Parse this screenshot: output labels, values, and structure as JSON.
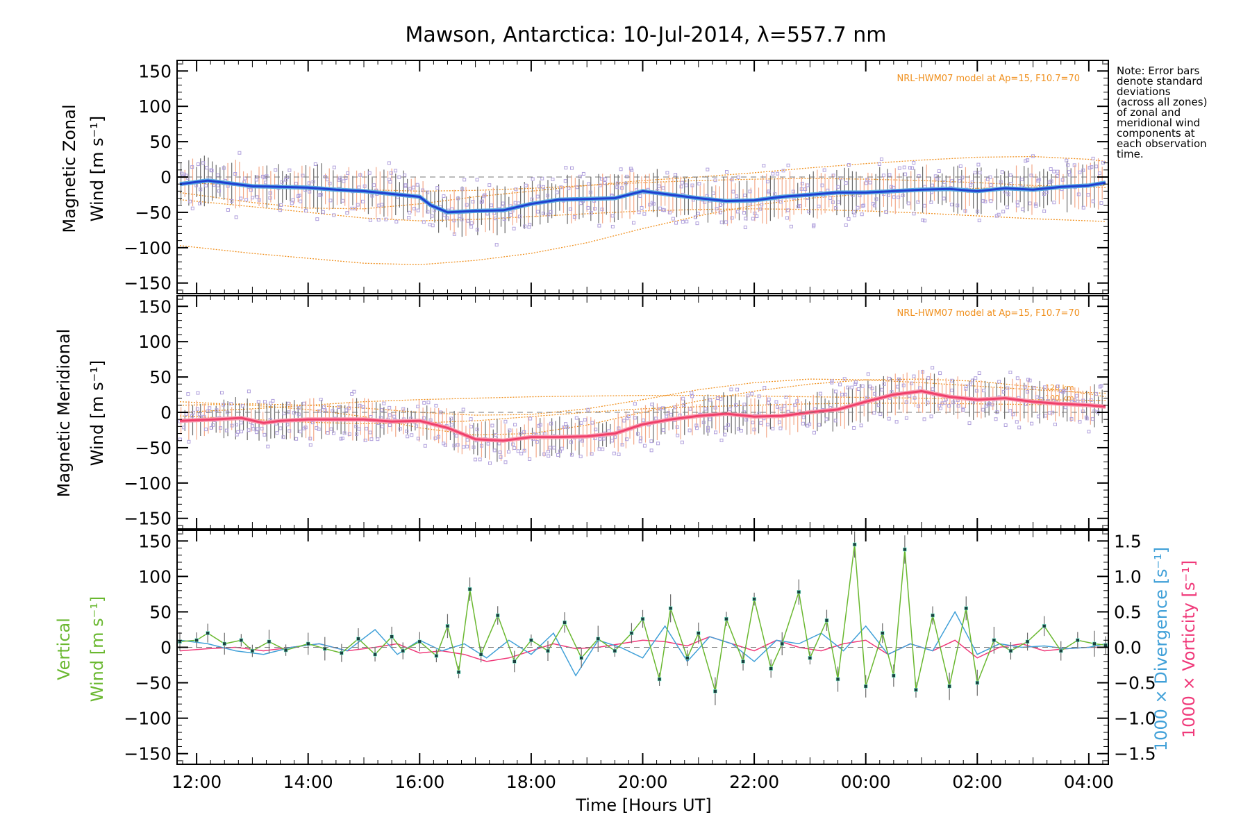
{
  "figure": {
    "title": "Mawson, Antarctica: 10-Jul-2014, λ=557.7 nm",
    "note_lines": [
      "Note: Error bars",
      "denote standard",
      "deviations",
      "(across all zones)",
      "of zonal and",
      "meridional wind",
      "components at",
      "each observation",
      "time."
    ],
    "xlabel": "Time [Hours UT]",
    "model_note": "NRL-HWM07 model at Ap=15, F10.7=70",
    "km_labels": [
      "120 km",
      "100 km"
    ],
    "colors": {
      "zonal": "#1f3fd0",
      "zonal_light": "#5aa8e0",
      "meridional": "#f0406a",
      "vertical": "#6ab830",
      "divergence": "#40a0d8",
      "vorticity": "#f03a7a",
      "model": "#f0901e",
      "scatter": "#b0a0dc",
      "errorbar": "#6a6a6a"
    }
  },
  "chart_data": [
    {
      "type": "line",
      "panel": "zonal",
      "ylabel_line1": "Magnetic Zonal",
      "ylabel_line2": "Wind [m s⁻¹]",
      "x_tick_labels": [
        "12:00",
        "14:00",
        "16:00",
        "18:00",
        "20:00",
        "22:00",
        "00:00",
        "02:00",
        "04:00"
      ],
      "x_ticks_hours": [
        12,
        14,
        16,
        18,
        20,
        22,
        24,
        26,
        28
      ],
      "xlim_hours": [
        11.65,
        28.35
      ],
      "ylim": [
        -165,
        165
      ],
      "y_ticks": [
        150,
        100,
        50,
        0,
        -50,
        -100,
        -150
      ],
      "series": [
        {
          "role": "mean",
          "x": [
            11.7,
            12.2,
            13,
            13.5,
            14,
            14.5,
            15,
            15.5,
            16,
            16.2,
            16.5,
            17,
            17.5,
            18,
            18.5,
            19,
            19.5,
            20,
            20.5,
            21,
            21.5,
            22,
            22.5,
            23,
            23.5,
            24,
            24.5,
            25,
            25.5,
            26,
            26.5,
            27,
            27.5,
            28,
            28.3
          ],
          "y": [
            -10,
            -5,
            -13,
            -14,
            -15,
            -18,
            -20,
            -24,
            -28,
            -40,
            -50,
            -48,
            -47,
            -38,
            -32,
            -31,
            -30,
            -20,
            -25,
            -30,
            -34,
            -33,
            -28,
            -25,
            -22,
            -22,
            -20,
            -18,
            -17,
            -20,
            -16,
            -18,
            -14,
            -12,
            -8
          ]
        }
      ],
      "error_sd": 26,
      "model": [
        {
          "x": [
            11.7,
            13,
            14,
            15,
            16,
            17,
            18,
            19,
            20,
            21,
            22,
            23,
            24,
            25,
            26,
            27,
            28,
            28.3
          ],
          "y": [
            -97,
            -108,
            -115,
            -122,
            -124,
            -118,
            -108,
            -93,
            -73,
            -55,
            -40,
            -30,
            -24,
            -20,
            -16,
            -14,
            -13,
            -12
          ]
        },
        {
          "x": [
            11.7,
            13,
            14,
            15,
            16,
            17,
            18,
            19,
            20,
            21,
            22,
            23,
            24,
            25,
            26,
            27,
            28,
            28.3
          ],
          "y": [
            -32,
            -42,
            -50,
            -58,
            -62,
            -60,
            -56,
            -52,
            -48,
            -46,
            -45,
            -46,
            -48,
            -51,
            -55,
            -59,
            -62,
            -63
          ]
        },
        {
          "x": [
            11.7,
            13,
            14,
            15,
            16,
            17,
            18,
            19,
            20,
            21,
            22,
            23,
            24,
            25,
            26,
            27,
            28,
            28.3
          ],
          "y": [
            -22,
            -36,
            -44,
            -45,
            -38,
            -28,
            -20,
            -12,
            -5,
            0,
            6,
            13,
            19,
            24,
            28,
            29,
            25,
            22
          ]
        },
        {
          "x": [
            11.7,
            13,
            14,
            15,
            16,
            17,
            18,
            19,
            20,
            21,
            22,
            23,
            24,
            25,
            26,
            27,
            28,
            28.3
          ],
          "y": [
            -8,
            -12,
            -16,
            -18,
            -20,
            -19,
            -16,
            -12,
            -8,
            -5,
            -3,
            -2,
            -3,
            -5,
            -8,
            -12,
            -14,
            -15
          ]
        }
      ]
    },
    {
      "type": "line",
      "panel": "meridional",
      "ylabel_line1": "Magnetic Meridional",
      "ylabel_line2": "Wind [m s⁻¹]",
      "x_tick_labels": [
        "12:00",
        "14:00",
        "16:00",
        "18:00",
        "20:00",
        "22:00",
        "00:00",
        "02:00",
        "04:00"
      ],
      "ylim": [
        -165,
        165
      ],
      "y_ticks": [
        150,
        100,
        50,
        0,
        -50,
        -100,
        -150
      ],
      "series": [
        {
          "role": "mean",
          "x": [
            11.7,
            12.3,
            12.8,
            13.2,
            13.5,
            14,
            14.5,
            15,
            15.5,
            16,
            16.5,
            17,
            17.5,
            18,
            18.5,
            19,
            19.5,
            20,
            20.5,
            21,
            21.5,
            22,
            22.5,
            23,
            23.5,
            24,
            24.5,
            25,
            25.5,
            26,
            26.5,
            27,
            27.5,
            28,
            28.3
          ],
          "y": [
            -12,
            -10,
            -8,
            -15,
            -12,
            -10,
            -10,
            -10,
            -13,
            -12,
            -22,
            -38,
            -40,
            -35,
            -35,
            -34,
            -30,
            -17,
            -10,
            -5,
            -2,
            -6,
            -5,
            0,
            4,
            15,
            25,
            30,
            22,
            18,
            20,
            15,
            12,
            10,
            8
          ]
        }
      ],
      "error_sd": 22,
      "model": [
        {
          "x": [
            11.7,
            13,
            14,
            15,
            16,
            17,
            18,
            19,
            20,
            21,
            22,
            23,
            24,
            25,
            26,
            27,
            28,
            28.3
          ],
          "y": [
            15,
            10,
            4,
            -6,
            -22,
            -32,
            -30,
            -18,
            0,
            16,
            30,
            40,
            46,
            47,
            44,
            36,
            26,
            22
          ]
        },
        {
          "x": [
            11.7,
            13,
            14,
            15,
            16,
            17,
            18,
            19,
            20,
            21,
            22,
            23,
            24,
            25,
            26,
            27,
            28,
            28.3
          ],
          "y": [
            10,
            12,
            10,
            6,
            0,
            -4,
            -3,
            5,
            18,
            32,
            42,
            47,
            46,
            42,
            37,
            32,
            28,
            27
          ]
        },
        {
          "x": [
            11.7,
            13,
            14,
            15,
            16,
            17,
            18,
            19,
            20,
            21,
            22,
            23,
            24,
            25,
            26,
            27,
            28,
            28.3
          ],
          "y": [
            0,
            5,
            10,
            15,
            18,
            20,
            22,
            23,
            24,
            24,
            23,
            22,
            21,
            20,
            19,
            18,
            17,
            17
          ]
        },
        {
          "x": [
            11.7,
            13,
            14,
            15,
            16,
            17,
            18,
            19,
            20,
            21,
            22,
            23,
            24,
            25,
            26,
            27,
            28,
            28.3
          ],
          "y": [
            -5,
            -10,
            -14,
            -16,
            -15,
            -12,
            -6,
            0,
            5,
            8,
            10,
            12,
            13,
            13,
            12,
            11,
            10,
            10
          ]
        }
      ]
    },
    {
      "type": "line",
      "panel": "vertical",
      "ylabel_line1": "Vertical",
      "ylabel_line2": "Wind [m s⁻¹]",
      "x_tick_labels": [
        "12:00",
        "14:00",
        "16:00",
        "18:00",
        "20:00",
        "22:00",
        "00:00",
        "02:00",
        "04:00"
      ],
      "ylim": [
        -165,
        165
      ],
      "y_ticks": [
        150,
        100,
        50,
        0,
        -50,
        -100,
        -150
      ],
      "y2_label_div": "1000 × Divergence [s⁻¹]",
      "y2_label_vort": "1000 × Vorticity [s⁻¹]",
      "y2_tick_labels": [
        "1.5",
        "1.0",
        "0.5",
        "0.0",
        "−0.5",
        "−1.0",
        "−1.5"
      ],
      "y2lim": [
        -1.65,
        1.65
      ],
      "y2_ticks": [
        1.5,
        1.0,
        0.5,
        0.0,
        -0.5,
        -1.0,
        -1.5
      ],
      "series": [
        {
          "name": "Vertical",
          "x": [
            11.7,
            12,
            12.2,
            12.5,
            12.8,
            13,
            13.3,
            13.6,
            14,
            14.3,
            14.6,
            14.9,
            15.2,
            15.5,
            15.7,
            16,
            16.3,
            16.5,
            16.7,
            16.9,
            17.1,
            17.4,
            17.7,
            18,
            18.3,
            18.6,
            18.9,
            19.2,
            19.5,
            19.8,
            20,
            20.3,
            20.5,
            20.8,
            21,
            21.3,
            21.5,
            21.8,
            22,
            22.3,
            22.5,
            22.8,
            23,
            23.3,
            23.5,
            23.8,
            24,
            24.3,
            24.5,
            24.7,
            24.9,
            25.2,
            25.5,
            25.8,
            26,
            26.3,
            26.6,
            26.9,
            27.2,
            27.5,
            27.8,
            28.1,
            28.3
          ],
          "y": [
            8,
            10,
            20,
            5,
            10,
            -5,
            8,
            -4,
            5,
            -2,
            -8,
            12,
            -10,
            15,
            -5,
            8,
            -12,
            30,
            -35,
            82,
            -10,
            45,
            -20,
            10,
            -5,
            35,
            -15,
            12,
            -5,
            20,
            40,
            -45,
            55,
            -15,
            20,
            -62,
            40,
            -20,
            68,
            -30,
            5,
            78,
            -15,
            38,
            -45,
            145,
            -55,
            20,
            -40,
            138,
            -60,
            45,
            -55,
            55,
            -50,
            10,
            -5,
            8,
            30,
            -5,
            10,
            5,
            3
          ]
        },
        {
          "name": "1000 × Divergence [s⁻¹]",
          "x": [
            11.7,
            12.2,
            12.7,
            13.2,
            13.7,
            14.2,
            14.7,
            15.2,
            15.6,
            16,
            16.4,
            16.8,
            17.2,
            17.6,
            18,
            18.4,
            18.8,
            19.2,
            19.6,
            20,
            20.4,
            20.8,
            21.2,
            21.6,
            22,
            22.4,
            22.8,
            23.2,
            23.6,
            24,
            24.4,
            24.8,
            25.2,
            25.6,
            26,
            26.4,
            26.8,
            27.2,
            27.6,
            28,
            28.3
          ],
          "y": [
            0.1,
            0.05,
            -0.05,
            -0.1,
            0.0,
            0.05,
            -0.05,
            0.25,
            -0.1,
            0.1,
            -0.05,
            0.05,
            -0.15,
            0.1,
            -0.1,
            0.2,
            -0.4,
            0.1,
            0.0,
            -0.15,
            0.3,
            -0.2,
            0.15,
            0.05,
            -0.2,
            0.1,
            0.05,
            0.2,
            -0.05,
            0.3,
            -0.1,
            0.05,
            -0.05,
            0.5,
            -0.1,
            0.05,
            0.0,
            0.02,
            -0.02,
            0.0,
            0.05
          ]
        },
        {
          "name": "1000 × Vorticity [s⁻¹]",
          "x": [
            11.7,
            12.2,
            12.7,
            13.2,
            13.7,
            14.2,
            14.7,
            15.2,
            15.6,
            16,
            16.4,
            16.8,
            17.2,
            17.6,
            18,
            18.4,
            18.8,
            19.2,
            19.6,
            20,
            20.4,
            20.8,
            21.2,
            21.6,
            22,
            22.4,
            22.8,
            23.2,
            23.6,
            24,
            24.4,
            24.8,
            25.2,
            25.6,
            26,
            26.4,
            26.8,
            27.2,
            27.6,
            28,
            28.3
          ],
          "y": [
            -0.05,
            -0.02,
            0.0,
            -0.05,
            0.0,
            0.05,
            -0.05,
            0.0,
            0.05,
            -0.08,
            -0.05,
            -0.1,
            -0.2,
            -0.15,
            -0.05,
            0.05,
            -0.02,
            0.0,
            0.05,
            0.1,
            0.08,
            0.02,
            0.15,
            0.05,
            -0.05,
            0.1,
            0.0,
            -0.05,
            0.05,
            0.1,
            -0.1,
            0.05,
            -0.05,
            0.1,
            -0.15,
            0.0,
            0.05,
            -0.05,
            -0.02,
            0.0,
            0.0
          ]
        }
      ]
    }
  ]
}
